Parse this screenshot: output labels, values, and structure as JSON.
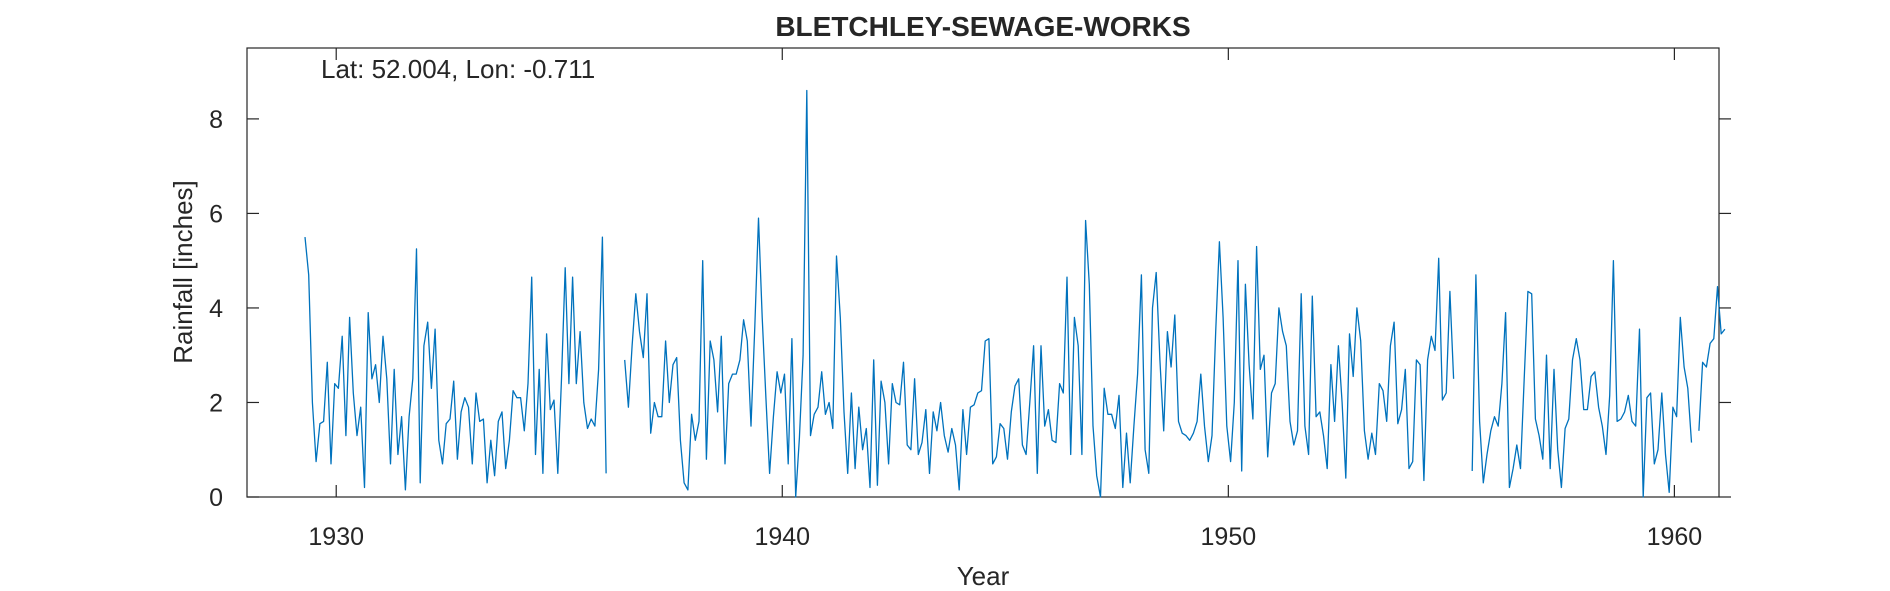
{
  "chart_data": {
    "type": "line",
    "title": "BLETCHLEY-SEWAGE-WORKS",
    "xlabel": "Year",
    "ylabel": "Rainfall [inches]",
    "annotation": "Lat: 52.004, Lon: -0.711",
    "xlim": [
      1928,
      1961
    ],
    "ylim": [
      0,
      9.5
    ],
    "xticks": [
      1930,
      1940,
      1950,
      1960
    ],
    "yticks": [
      0,
      2,
      4,
      6,
      8
    ],
    "grid": false,
    "color": "#0072BD",
    "series": [
      {
        "start": 1929.3,
        "step": 0.0833333,
        "values": [
          5.5,
          4.7,
          2.0,
          0.75,
          1.55,
          1.6,
          2.85,
          0.7,
          2.4,
          2.3,
          3.4,
          1.3,
          3.8,
          2.2,
          1.3,
          1.9,
          0.2,
          3.9,
          2.5,
          2.8,
          2.0,
          3.4,
          2.5,
          0.7,
          2.7,
          0.9,
          1.7,
          0.15,
          1.7,
          2.5,
          5.25,
          0.3,
          3.2,
          3.7,
          2.3,
          3.55,
          1.2,
          0.7,
          1.55,
          1.65,
          2.45,
          0.8,
          1.8,
          2.1,
          1.9,
          0.7,
          2.2,
          1.6,
          1.65,
          0.3,
          1.2,
          0.45,
          1.6,
          1.8,
          0.6,
          1.2,
          2.25,
          2.1,
          2.1,
          1.4,
          2.4,
          4.65,
          0.9,
          2.7,
          0.5,
          3.45,
          1.85,
          2.05,
          0.5,
          2.5,
          4.85,
          2.4,
          4.65,
          2.4,
          3.5,
          2.0,
          1.45,
          1.65,
          1.5,
          2.7,
          5.5,
          0.5,
          null,
          null,
          null,
          null,
          2.9,
          1.9,
          3.2,
          4.3,
          3.5,
          2.95,
          4.3,
          1.35,
          2.0,
          1.7,
          1.7,
          3.3,
          2.0,
          2.8,
          2.95,
          1.2,
          0.3,
          0.15,
          1.75,
          1.2,
          1.6,
          5.0,
          0.8,
          3.3,
          2.9,
          1.8,
          3.4,
          0.7,
          2.4,
          2.6,
          2.6,
          2.9,
          3.75,
          3.3,
          1.5,
          3.6,
          5.9,
          3.8,
          2.1,
          0.5,
          1.7,
          2.65,
          2.2,
          2.6,
          0.7,
          3.35,
          0.0,
          1.25,
          3.0,
          8.6,
          1.3,
          1.75,
          1.9,
          2.65,
          1.75,
          2.0,
          1.45,
          5.1,
          3.8,
          1.8,
          0.5,
          2.2,
          0.6,
          1.9,
          1.0,
          1.45,
          0.2,
          2.9,
          0.25,
          2.45,
          2.0,
          0.7,
          2.4,
          2.0,
          1.95,
          2.85,
          1.1,
          1.0,
          2.5,
          0.9,
          1.15,
          1.85,
          0.5,
          1.8,
          1.4,
          2.0,
          1.3,
          0.95,
          1.45,
          1.1,
          0.15,
          1.85,
          0.9,
          1.9,
          1.95,
          2.2,
          2.25,
          3.3,
          3.35,
          0.7,
          0.85,
          1.55,
          1.45,
          0.8,
          1.8,
          2.35,
          2.5,
          1.1,
          0.9,
          2.0,
          3.2,
          0.5,
          3.2,
          1.5,
          1.85,
          1.2,
          1.15,
          2.4,
          2.2,
          4.65,
          0.9,
          3.8,
          3.2,
          0.9,
          5.85,
          4.5,
          1.5,
          0.45,
          0.0,
          2.3,
          1.75,
          1.75,
          1.45,
          2.15,
          0.2,
          1.35,
          0.3,
          1.5,
          2.6,
          4.7,
          1.0,
          0.5,
          4.0,
          4.75,
          2.9,
          1.4,
          3.5,
          2.75,
          3.85,
          1.6,
          1.35,
          1.3,
          1.2,
          1.35,
          1.6,
          2.6,
          1.5,
          0.75,
          1.3,
          3.5,
          5.4,
          3.8,
          1.5,
          0.75,
          2.0,
          5.0,
          0.55,
          4.5,
          2.8,
          1.65,
          5.3,
          2.7,
          3.0,
          0.85,
          2.2,
          2.4,
          4.0,
          3.5,
          3.2,
          1.6,
          1.1,
          1.4,
          4.3,
          1.5,
          0.9,
          4.25,
          1.7,
          1.8,
          1.3,
          0.6,
          2.8,
          1.6,
          3.2,
          2.0,
          0.4,
          3.45,
          2.55,
          4.0,
          3.3,
          1.4,
          0.8,
          1.35,
          0.9,
          2.4,
          2.25,
          1.6,
          3.2,
          3.7,
          1.55,
          1.85,
          2.7,
          0.6,
          0.75,
          2.9,
          2.8,
          0.35,
          2.9,
          3.4,
          3.1,
          5.05,
          2.05,
          2.2,
          4.35,
          2.5,
          null,
          null,
          null,
          null,
          0.55,
          4.7,
          1.6,
          0.3,
          0.9,
          1.4,
          1.7,
          1.5,
          2.4,
          3.9,
          0.2,
          0.6,
          1.1,
          0.6,
          2.5,
          4.35,
          4.3,
          1.65,
          1.3,
          0.8,
          3.0,
          0.6,
          2.7,
          1.0,
          0.2,
          1.45,
          1.65,
          2.9,
          3.35,
          2.9,
          1.85,
          1.85,
          2.55,
          2.65,
          1.9,
          1.5,
          0.9,
          2.15,
          5.0,
          1.6,
          1.65,
          1.8,
          2.15,
          1.6,
          1.5,
          3.55,
          0.0,
          2.1,
          2.2,
          0.7,
          1.0,
          2.2,
          0.9,
          0.1,
          1.9,
          1.7,
          3.8,
          2.75,
          2.3,
          1.15,
          null,
          1.4,
          2.85,
          2.75,
          3.25,
          3.35,
          4.45,
          3.45,
          3.55
        ]
      }
    ]
  }
}
